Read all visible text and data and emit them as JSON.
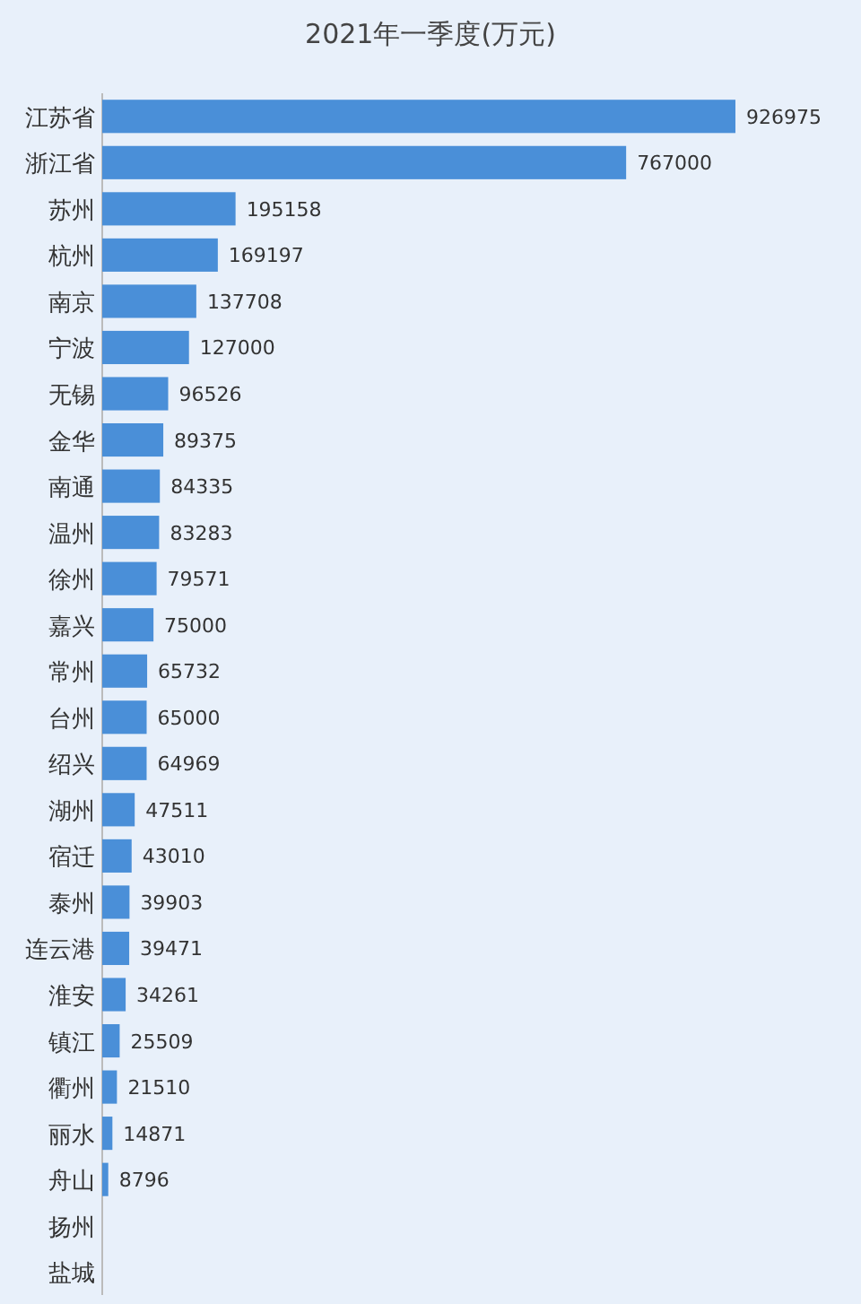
{
  "chart_data": {
    "type": "bar",
    "orientation": "horizontal",
    "title": "2021年一季度(万元)",
    "categories": [
      "江苏省",
      "浙江省",
      "苏州",
      "杭州",
      "南京",
      "宁波",
      "无锡",
      "金华",
      "南通",
      "温州",
      "徐州",
      "嘉兴",
      "常州",
      "台州",
      "绍兴",
      "湖州",
      "宿迁",
      "泰州",
      "连云港",
      "淮安",
      "镇江",
      "衢州",
      "丽水",
      "舟山",
      "扬州",
      "盐城"
    ],
    "values": [
      926975,
      767000,
      195158,
      169197,
      137708,
      127000,
      96526,
      89375,
      84335,
      83283,
      79571,
      75000,
      65732,
      65000,
      64969,
      47511,
      43010,
      39903,
      39471,
      34261,
      25509,
      21510,
      14871,
      8796,
      null,
      null
    ],
    "color": "#4a8fd8",
    "data_labels": true
  }
}
